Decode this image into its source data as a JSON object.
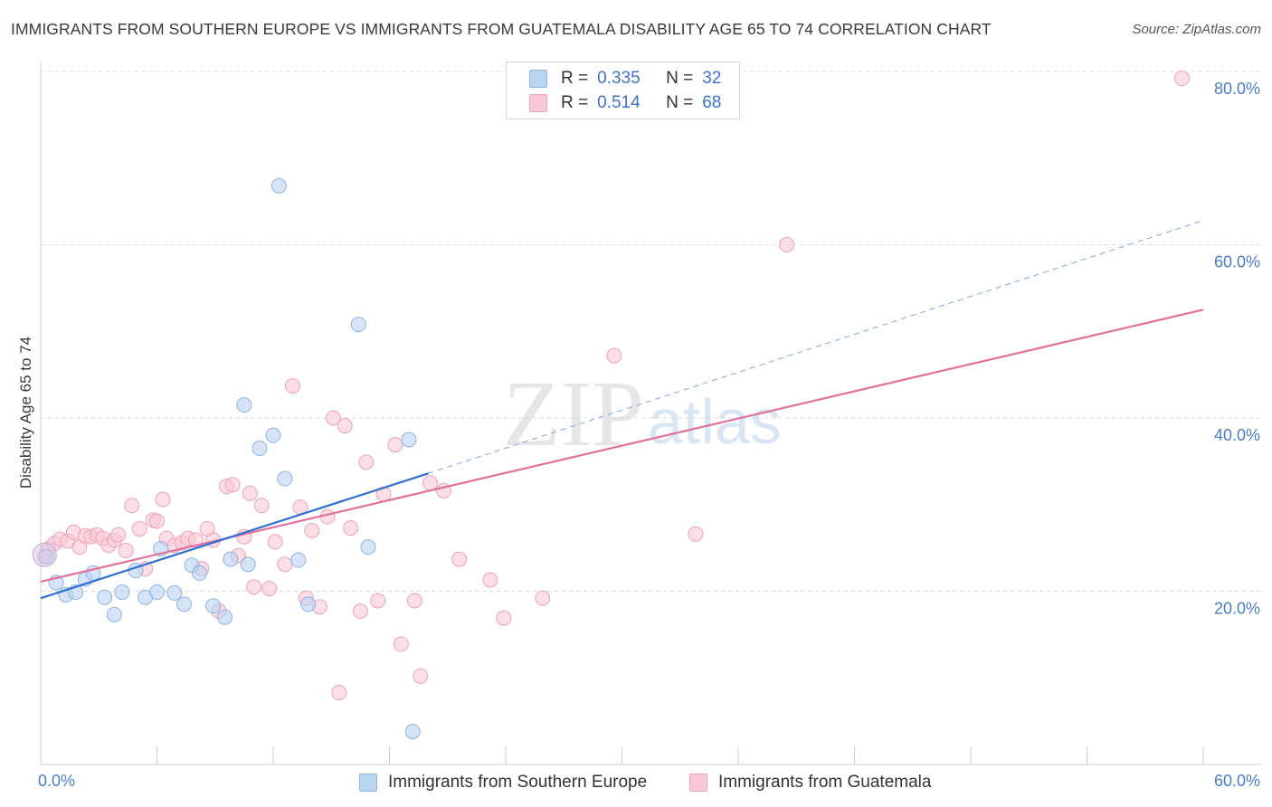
{
  "title": "IMMIGRANTS FROM SOUTHERN EUROPE VS IMMIGRANTS FROM GUATEMALA DISABILITY AGE 65 TO 74 CORRELATION CHART",
  "source": "Source: ZipAtlas.com",
  "watermark": {
    "zip": "ZIP",
    "atlas": "atlas"
  },
  "legend": {
    "rows": [
      {
        "r_label": "R =",
        "r_value": "0.335",
        "n_label": "N =",
        "n_value": "32"
      },
      {
        "r_label": "R =",
        "r_value": "0.514",
        "n_label": "N =",
        "n_value": "68"
      }
    ]
  },
  "bottom_legend": {
    "series1": "Immigrants from Southern Europe",
    "series2": "Immigrants from Guatemala"
  },
  "colors": {
    "blue_fill": "#b9d3f2",
    "blue_stroke": "#8fb3e3",
    "blue_line": "#2f6fd0",
    "pink_fill": "#f8c8d6",
    "pink_stroke": "#eca3ba",
    "pink_line": "#e2719a",
    "grid": "#d8d8d8",
    "tick_label": "#4a7fc8"
  },
  "chart_data": {
    "type": "scatter",
    "title": "IMMIGRANTS FROM SOUTHERN EUROPE VS IMMIGRANTS FROM GUATEMALA DISABILITY AGE 65 TO 74 CORRELATION CHART",
    "xlabel": "",
    "ylabel": "Disability Age 65 to 74",
    "xlim": [
      0,
      60
    ],
    "ylim": [
      0,
      80
    ],
    "x_tick_labels": [
      "0.0%",
      "60.0%"
    ],
    "y_ticks": [
      20,
      40,
      60,
      80
    ],
    "y_tick_labels": [
      "20.0%",
      "40.0%",
      "60.0%",
      "80.0%"
    ],
    "grid": "horizontal dashed",
    "legend_position": "top-center",
    "series": [
      {
        "name": "Immigrants from Southern Europe",
        "color": "#b9d3f2",
        "R": 0.335,
        "N": 32,
        "trend": {
          "x": [
            0,
            20
          ],
          "y": [
            19.2,
            33.6
          ]
        },
        "trend_extension": {
          "x": [
            20,
            60
          ],
          "y": [
            33.6,
            62.8
          ]
        },
        "points": [
          [
            0.3,
            24.0
          ],
          [
            0.8,
            21.0
          ],
          [
            1.3,
            19.6
          ],
          [
            1.8,
            19.9
          ],
          [
            2.3,
            21.4
          ],
          [
            2.7,
            22.1
          ],
          [
            3.3,
            19.3
          ],
          [
            3.8,
            17.3
          ],
          [
            4.2,
            19.9
          ],
          [
            4.9,
            22.4
          ],
          [
            5.4,
            19.3
          ],
          [
            6.0,
            19.9
          ],
          [
            6.2,
            24.9
          ],
          [
            6.9,
            19.8
          ],
          [
            7.4,
            18.5
          ],
          [
            7.8,
            23.0
          ],
          [
            8.2,
            22.1
          ],
          [
            8.9,
            18.3
          ],
          [
            9.5,
            17.0
          ],
          [
            9.8,
            23.7
          ],
          [
            10.5,
            41.5
          ],
          [
            10.7,
            23.1
          ],
          [
            11.3,
            36.5
          ],
          [
            12.0,
            38.0
          ],
          [
            12.3,
            66.8
          ],
          [
            12.6,
            33.0
          ],
          [
            13.3,
            23.6
          ],
          [
            13.8,
            18.5
          ],
          [
            16.4,
            50.8
          ],
          [
            16.9,
            25.1
          ],
          [
            19.0,
            37.5
          ],
          [
            19.2,
            3.8
          ]
        ]
      },
      {
        "name": "Immigrants from Guatemala",
        "color": "#f8c8d6",
        "R": 0.514,
        "N": 68,
        "trend": {
          "x": [
            0,
            60
          ],
          "y": [
            21.1,
            52.5
          ]
        },
        "points": [
          [
            0.4,
            24.9
          ],
          [
            0.7,
            25.5
          ],
          [
            1.0,
            26.0
          ],
          [
            1.4,
            25.8
          ],
          [
            1.7,
            26.8
          ],
          [
            2.0,
            25.1
          ],
          [
            2.3,
            26.4
          ],
          [
            2.6,
            26.3
          ],
          [
            2.9,
            26.5
          ],
          [
            3.2,
            26.1
          ],
          [
            3.5,
            25.3
          ],
          [
            3.8,
            25.9
          ],
          [
            4.0,
            26.5
          ],
          [
            4.4,
            24.7
          ],
          [
            4.7,
            29.9
          ],
          [
            5.1,
            27.2
          ],
          [
            5.4,
            22.6
          ],
          [
            5.8,
            28.2
          ],
          [
            6.0,
            28.1
          ],
          [
            6.3,
            30.6
          ],
          [
            6.5,
            26.1
          ],
          [
            6.9,
            25.3
          ],
          [
            7.3,
            25.6
          ],
          [
            7.6,
            26.1
          ],
          [
            8.0,
            25.9
          ],
          [
            8.3,
            22.6
          ],
          [
            8.6,
            27.2
          ],
          [
            8.9,
            25.9
          ],
          [
            9.2,
            17.7
          ],
          [
            9.6,
            32.1
          ],
          [
            9.9,
            32.3
          ],
          [
            10.2,
            24.1
          ],
          [
            10.5,
            26.3
          ],
          [
            10.8,
            31.3
          ],
          [
            11.0,
            20.5
          ],
          [
            11.4,
            29.9
          ],
          [
            11.8,
            20.3
          ],
          [
            12.1,
            25.7
          ],
          [
            12.6,
            23.1
          ],
          [
            13.0,
            43.7
          ],
          [
            13.4,
            29.7
          ],
          [
            13.7,
            19.2
          ],
          [
            14.0,
            27.0
          ],
          [
            14.4,
            18.2
          ],
          [
            14.8,
            28.6
          ],
          [
            15.1,
            40.0
          ],
          [
            15.4,
            8.3
          ],
          [
            15.7,
            39.1
          ],
          [
            16.0,
            27.3
          ],
          [
            16.5,
            17.7
          ],
          [
            16.8,
            34.9
          ],
          [
            17.4,
            18.9
          ],
          [
            17.7,
            31.2
          ],
          [
            18.3,
            36.9
          ],
          [
            18.6,
            13.9
          ],
          [
            19.3,
            18.9
          ],
          [
            19.6,
            10.2
          ],
          [
            20.1,
            32.5
          ],
          [
            20.8,
            31.6
          ],
          [
            21.6,
            23.7
          ],
          [
            23.2,
            21.3
          ],
          [
            23.9,
            16.9
          ],
          [
            25.9,
            19.2
          ],
          [
            29.6,
            47.2
          ],
          [
            33.8,
            26.6
          ],
          [
            38.5,
            60.0
          ],
          [
            58.9,
            79.2
          ],
          [
            0.2,
            24.0
          ]
        ]
      }
    ]
  }
}
